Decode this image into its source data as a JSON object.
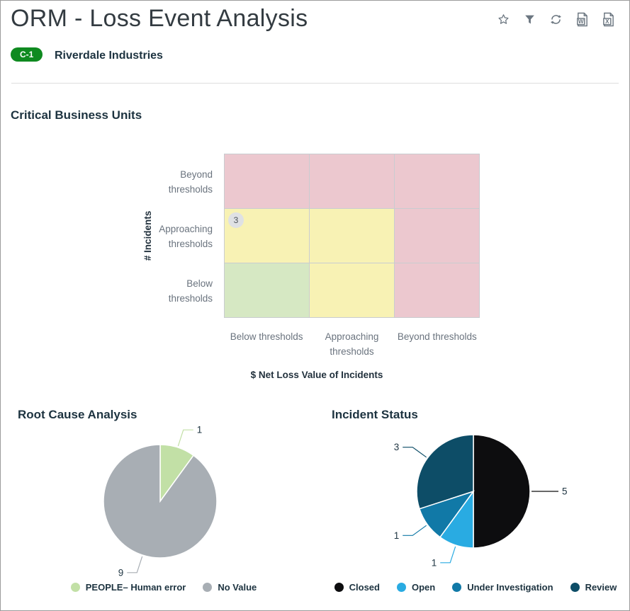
{
  "header": {
    "title": "ORM - Loss Event Analysis",
    "badge_label": "C-1",
    "company": "Riverdale Industries",
    "word_letter": "W",
    "excel_letter": "X",
    "action_icons": [
      "favorite-star",
      "filter-funnel",
      "refresh",
      "export-word",
      "export-excel"
    ]
  },
  "colors": {
    "badge_green": "#0f8a20",
    "heading_navy": "#1d3340",
    "tick_gray": "#6a737e",
    "icon_gray": "#6b7680",
    "matrix_red": "#ecc8cf",
    "matrix_yellow": "#f8f2b4",
    "matrix_green": "#d6e8c3",
    "count_badge_bg": "#dfe1e4"
  },
  "chart_data": [
    {
      "type": "heatmap",
      "title": "Critical Business Units",
      "xlabel": "$ Net Loss Value of Incidents",
      "ylabel": "# Incidents",
      "x_categories": [
        "Below thresholds",
        "Approaching thresholds",
        "Beyond thresholds"
      ],
      "y_categories": [
        "Beyond thresholds",
        "Approaching thresholds",
        "Below thresholds"
      ],
      "cells": [
        [
          "red",
          "red",
          "red"
        ],
        [
          "yellow",
          "yellow",
          "red"
        ],
        [
          "green",
          "yellow",
          "red"
        ]
      ],
      "palette": {
        "red": "#ecc8cf",
        "yellow": "#f8f2b4",
        "green": "#d6e8c3"
      },
      "badges": [
        {
          "row": 1,
          "col": 0,
          "value": "3"
        }
      ],
      "grid": true
    },
    {
      "type": "pie",
      "title": "Root Cause Analysis",
      "categories": [
        "PEOPLE– Human error",
        "No Value"
      ],
      "values": [
        1,
        9
      ],
      "colors": [
        "#c2e0a6",
        "#a8aeb4"
      ],
      "legend_position": "bottom"
    },
    {
      "type": "pie",
      "title": "Incident Status",
      "categories": [
        "Closed",
        "Open",
        "Under Investigation",
        "Review"
      ],
      "values": [
        5,
        1,
        1,
        3
      ],
      "colors": [
        "#0d0d0f",
        "#29abe2",
        "#1179a7",
        "#0d4d67"
      ],
      "legend_position": "bottom"
    }
  ]
}
